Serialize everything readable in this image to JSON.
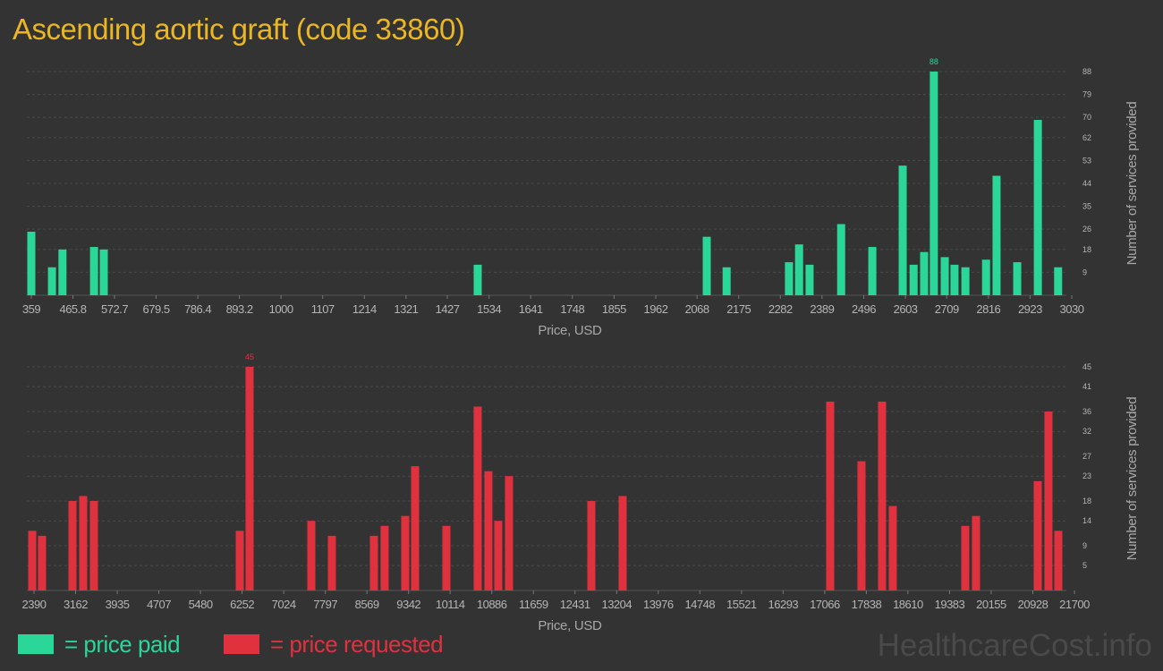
{
  "title": "Ascending aortic graft (code 33860)",
  "watermark": "HealthcareCost.info",
  "chart_data": [
    {
      "type": "bar",
      "x_label": "Price, USD",
      "y_label": "Number of services provided",
      "xlim": [
        359,
        3030
      ],
      "xticks": [
        359,
        465.8,
        572.7,
        679.5,
        786.4,
        893.2,
        1000,
        1107,
        1214,
        1321,
        1427,
        1534,
        1641,
        1748,
        1855,
        1962,
        2068,
        2175,
        2282,
        2389,
        2496,
        2603,
        2709,
        2816,
        2923,
        3030
      ],
      "ylim": [
        0,
        88
      ],
      "yticks": [
        9,
        18,
        26,
        35,
        44,
        53,
        62,
        70,
        79,
        88
      ],
      "grid": true,
      "label_max": true,
      "x": [
        359,
        412,
        439,
        520,
        545,
        1505,
        2093,
        2144,
        2304,
        2330,
        2357,
        2438,
        2518,
        2596,
        2624,
        2651,
        2676,
        2704,
        2729,
        2757,
        2810,
        2837,
        2890,
        2943,
        2995
      ],
      "series": [
        {
          "name": "= price paid",
          "color": "#2bd699",
          "values": [
            25,
            11,
            18,
            19,
            18,
            12,
            23,
            11,
            13,
            20,
            12,
            28,
            19,
            51,
            12,
            17,
            88,
            15,
            12,
            11,
            14,
            47,
            13,
            69,
            11
          ]
        }
      ]
    },
    {
      "type": "bar",
      "x_label": "Price, USD",
      "y_label": "Number of services provided",
      "xlim": [
        2390,
        21700
      ],
      "xticks": [
        2390,
        3162,
        3935,
        4707,
        5480,
        6252,
        7024,
        7797,
        8569,
        9342,
        10114,
        10886,
        11659,
        12431,
        13204,
        13976,
        14748,
        15521,
        16293,
        17066,
        17838,
        18610,
        19383,
        20155,
        20928,
        21700
      ],
      "ylim": [
        0,
        45
      ],
      "yticks": [
        5,
        9,
        14,
        18,
        23,
        27,
        32,
        36,
        41,
        45
      ],
      "grid": true,
      "label_max": true,
      "x": [
        2357,
        2539,
        3104,
        3303,
        3502,
        6209,
        6391,
        7537,
        7919,
        8699,
        8898,
        9280,
        9463,
        10044,
        10625,
        10824,
        11007,
        11206,
        12734,
        13315,
        17167,
        17748,
        18130,
        18329,
        19674,
        19873,
        21019,
        21218,
        21401
      ],
      "series": [
        {
          "name": "= price requested",
          "color": "#e0313f",
          "values": [
            12,
            11,
            18,
            19,
            18,
            12,
            45,
            14,
            11,
            11,
            13,
            15,
            25,
            13,
            37,
            24,
            14,
            23,
            18,
            19,
            38,
            26,
            38,
            17,
            13,
            15,
            22,
            36,
            12
          ]
        }
      ]
    }
  ]
}
